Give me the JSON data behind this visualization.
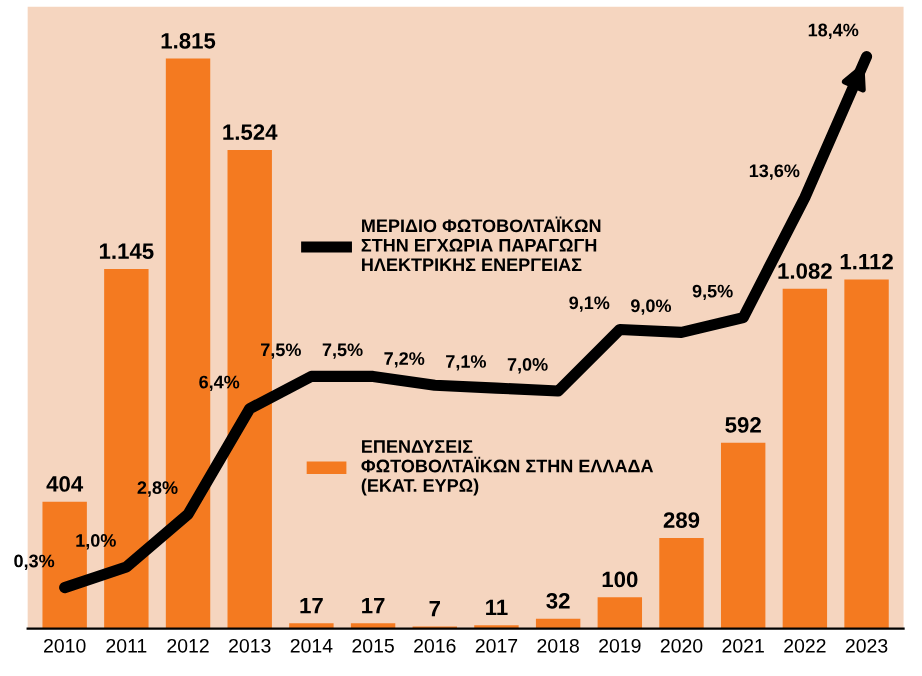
{
  "chart_data": {
    "type": "bar",
    "categories": [
      "2010",
      "2011",
      "2012",
      "2013",
      "2014",
      "2015",
      "2016",
      "2017",
      "2018",
      "2019",
      "2020",
      "2021",
      "2022",
      "2023"
    ],
    "series": [
      {
        "name": "ΕΠΕΝΔΥΣΕΙΣ\nΦΩΤΟΒΟΛΤΑΪΚΩΝ ΣΤΗΝ ΕΛΛΑΔΑ\n(ΕΚΑΤ. ΕΥΡΩ)",
        "color": "#f47a20",
        "values": [
          404,
          1145,
          1815,
          1524,
          17,
          17,
          7,
          11,
          32,
          100,
          289,
          592,
          1082,
          1112
        ],
        "value_labels": [
          "404",
          "1.145",
          "1.815",
          "1.524",
          "17",
          "17",
          "7",
          "11",
          "32",
          "100",
          "289",
          "592",
          "1.082",
          "1.112"
        ]
      },
      {
        "name": "ΜΕΡΙΔΙΟ ΦΩΤΟΒΟΛΤΑΪΚΩΝ\nΣΤΗΝ ΕΓΧΩΡΙΑ ΠΑΡΑΓΩΓΗ\nΗΛΕΚΤΡΙΚΗΣ ΕΝΕΡΓΕΙΑΣ",
        "type": "line",
        "axis": "y2",
        "color": "#000000",
        "values": [
          0.3,
          1.0,
          2.8,
          6.4,
          7.5,
          7.5,
          7.2,
          7.1,
          7.0,
          9.1,
          9.0,
          9.5,
          13.6,
          18.4
        ],
        "value_labels": [
          "0,3%",
          "1,0%",
          "2,8%",
          "6,4%",
          "7,5%",
          "7,5%",
          "7,2%",
          "7,1%",
          "7,0%",
          "9,1%",
          "9,0%",
          "9,5%",
          "13,6%",
          "18,4%"
        ]
      }
    ],
    "ylim": [
      0,
      1980
    ],
    "y2lim": [
      -1.1,
      20.1
    ],
    "tick_labels": "x",
    "legend": "center",
    "grid": false
  }
}
